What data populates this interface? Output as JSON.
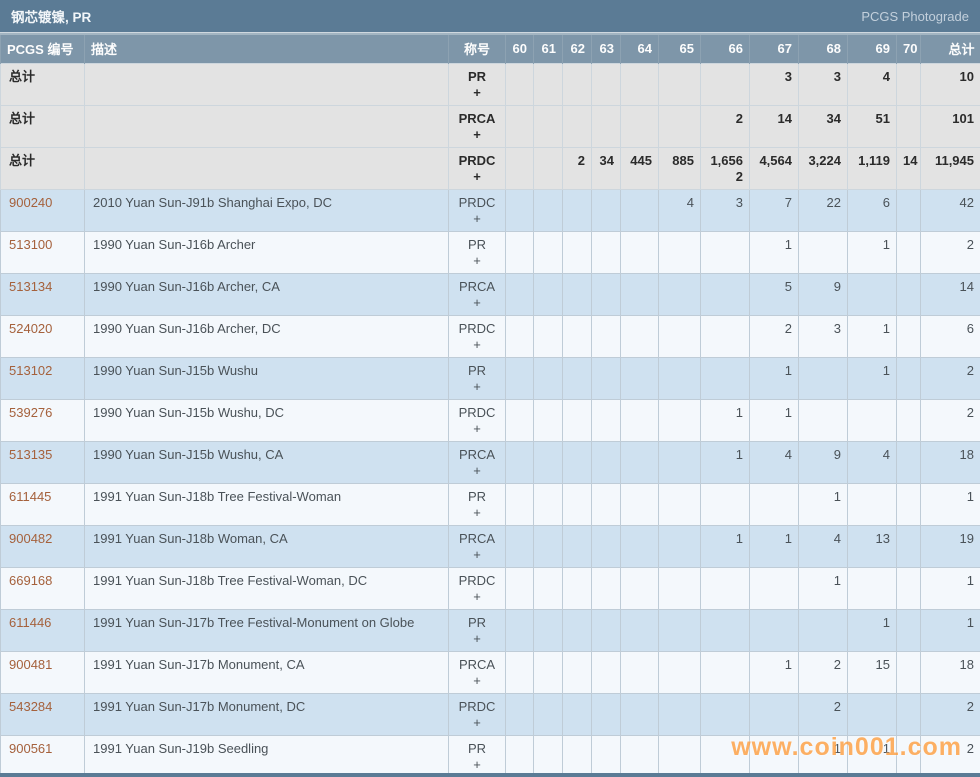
{
  "title_bar": {
    "title": "钢芯镀镍, PR",
    "link": "PCGS Photograde"
  },
  "watermark": "www.coin001.com",
  "table": {
    "headers": [
      "PCGS 编号",
      "描述",
      "称号",
      "60",
      "61",
      "62",
      "63",
      "64",
      "65",
      "66",
      "67",
      "68",
      "69",
      "70",
      "总计"
    ],
    "plus_label": "+",
    "rows": [
      {
        "num": "总计",
        "desc": "",
        "desig": "PR",
        "grades": [
          "",
          "",
          "",
          "",
          "",
          "",
          "",
          "3",
          "3",
          "4",
          ""
        ],
        "total": "10",
        "kind": "total"
      },
      {
        "num": "总计",
        "desc": "",
        "desig": "PRCA",
        "grades": [
          "",
          "",
          "",
          "",
          "",
          "",
          "2",
          "14",
          "34",
          "51",
          ""
        ],
        "total": "101",
        "kind": "total"
      },
      {
        "num": "总计",
        "desc": "",
        "desig": "PRDC",
        "grades": [
          "",
          "",
          "2",
          "34",
          "445",
          "885",
          "1,656",
          "4,564",
          "3,224",
          "1,119",
          "14"
        ],
        "plus": [
          "",
          "",
          "",
          "",
          "",
          "",
          "2",
          "",
          "",
          "",
          ""
        ],
        "total": "11,945",
        "kind": "total"
      },
      {
        "num": "900240",
        "desc": "2010 Yuan Sun-J91b Shanghai Expo, DC",
        "desig": "PRDC",
        "grades": [
          "",
          "",
          "",
          "",
          "",
          "4",
          "3",
          "7",
          "22",
          "6",
          ""
        ],
        "total": "42",
        "kind": "data"
      },
      {
        "num": "513100",
        "desc": "1990 Yuan Sun-J16b Archer",
        "desig": "PR",
        "grades": [
          "",
          "",
          "",
          "",
          "",
          "",
          "",
          "1",
          "",
          "1",
          ""
        ],
        "total": "2",
        "kind": "data"
      },
      {
        "num": "513134",
        "desc": "1990 Yuan Sun-J16b Archer, CA",
        "desig": "PRCA",
        "grades": [
          "",
          "",
          "",
          "",
          "",
          "",
          "",
          "5",
          "9",
          "",
          ""
        ],
        "total": "14",
        "kind": "data"
      },
      {
        "num": "524020",
        "desc": "1990 Yuan Sun-J16b Archer, DC",
        "desig": "PRDC",
        "grades": [
          "",
          "",
          "",
          "",
          "",
          "",
          "",
          "2",
          "3",
          "1",
          ""
        ],
        "total": "6",
        "kind": "data"
      },
      {
        "num": "513102",
        "desc": "1990 Yuan Sun-J15b Wushu",
        "desig": "PR",
        "grades": [
          "",
          "",
          "",
          "",
          "",
          "",
          "",
          "1",
          "",
          "1",
          ""
        ],
        "total": "2",
        "kind": "data"
      },
      {
        "num": "539276",
        "desc": "1990 Yuan Sun-J15b Wushu, DC",
        "desig": "PRDC",
        "grades": [
          "",
          "",
          "",
          "",
          "",
          "",
          "1",
          "1",
          "",
          "",
          ""
        ],
        "total": "2",
        "kind": "data"
      },
      {
        "num": "513135",
        "desc": "1990 Yuan Sun-J15b Wushu, CA",
        "desig": "PRCA",
        "grades": [
          "",
          "",
          "",
          "",
          "",
          "",
          "1",
          "4",
          "9",
          "4",
          ""
        ],
        "total": "18",
        "kind": "data"
      },
      {
        "num": "611445",
        "desc": "1991 Yuan Sun-J18b Tree Festival-Woman",
        "desig": "PR",
        "grades": [
          "",
          "",
          "",
          "",
          "",
          "",
          "",
          "",
          "1",
          "",
          ""
        ],
        "total": "1",
        "kind": "data"
      },
      {
        "num": "900482",
        "desc": "1991 Yuan Sun-J18b Woman, CA",
        "desig": "PRCA",
        "grades": [
          "",
          "",
          "",
          "",
          "",
          "",
          "1",
          "1",
          "4",
          "13",
          ""
        ],
        "total": "19",
        "kind": "data"
      },
      {
        "num": "669168",
        "desc": "1991 Yuan Sun-J18b Tree Festival-Woman, DC",
        "desig": "PRDC",
        "grades": [
          "",
          "",
          "",
          "",
          "",
          "",
          "",
          "",
          "1",
          "",
          ""
        ],
        "total": "1",
        "kind": "data"
      },
      {
        "num": "611446",
        "desc": "1991 Yuan Sun-J17b Tree Festival-Monument on Globe",
        "desig": "PR",
        "grades": [
          "",
          "",
          "",
          "",
          "",
          "",
          "",
          "",
          "",
          "1",
          ""
        ],
        "total": "1",
        "kind": "data"
      },
      {
        "num": "900481",
        "desc": "1991 Yuan Sun-J17b Monument, CA",
        "desig": "PRCA",
        "grades": [
          "",
          "",
          "",
          "",
          "",
          "",
          "",
          "1",
          "2",
          "15",
          ""
        ],
        "total": "18",
        "kind": "data"
      },
      {
        "num": "543284",
        "desc": "1991 Yuan Sun-J17b Monument, DC",
        "desig": "PRDC",
        "grades": [
          "",
          "",
          "",
          "",
          "",
          "",
          "",
          "",
          "2",
          "",
          ""
        ],
        "total": "2",
        "kind": "data"
      },
      {
        "num": "900561",
        "desc": "1991 Yuan Sun-J19b Seedling",
        "desig": "PR",
        "grades": [
          "",
          "",
          "",
          "",
          "",
          "",
          "",
          "",
          "1",
          "1",
          ""
        ],
        "total": "2",
        "kind": "data"
      }
    ]
  }
}
